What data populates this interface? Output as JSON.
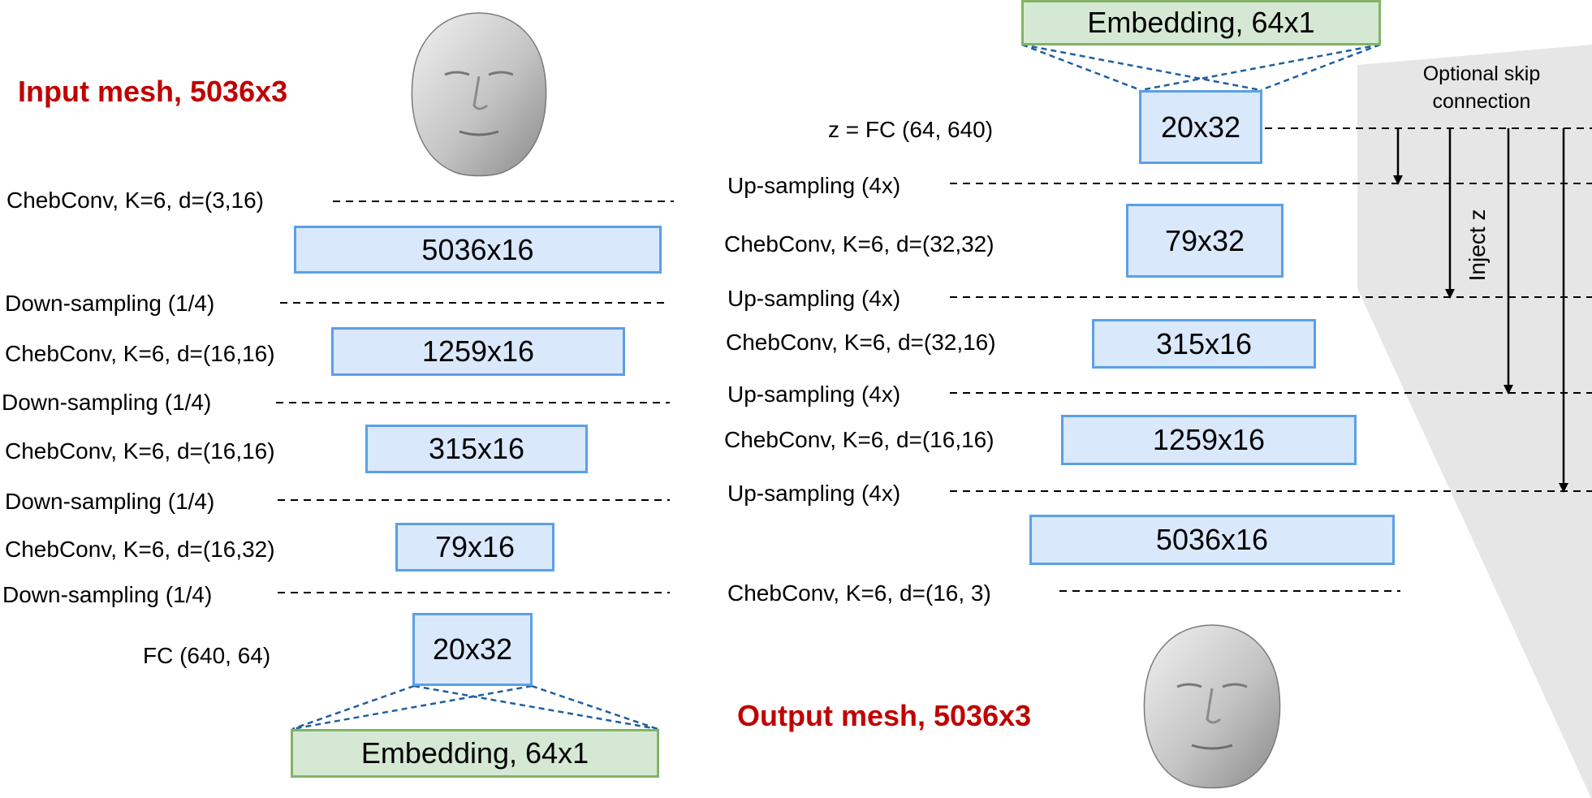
{
  "encoder": {
    "title": "Input mesh, 5036x3",
    "conv1": "ChebConv, K=6, d=(3,16)",
    "box1": "5036x16",
    "down1": "Down-sampling (1/4)",
    "conv2": "ChebConv, K=6, d=(16,16)",
    "box2": "1259x16",
    "down2": "Down-sampling (1/4)",
    "conv3": "ChebConv, K=6, d=(16,16)",
    "box3": "315x16",
    "down3": "Down-sampling (1/4)",
    "conv4": "ChebConv, K=6, d=(16,32)",
    "box4": "79x16",
    "down4": "Down-sampling (1/4)",
    "fc": "FC (640, 64)",
    "box5": "20x32",
    "embedding": "Embedding, 64x1"
  },
  "decoder": {
    "embedding": "Embedding, 64x1",
    "fc": "z = FC (64, 640)",
    "box1": "20x32",
    "up1": "Up-sampling (4x)",
    "conv1": "ChebConv, K=6, d=(32,32)",
    "box2": "79x32",
    "up2": "Up-sampling (4x)",
    "conv2": "ChebConv, K=6, d=(32,16)",
    "box3": "315x16",
    "up3": "Up-sampling (4x)",
    "conv3": "ChebConv, K=6, d=(16,16)",
    "box4": "1259x16",
    "up4": "Up-sampling (4x)",
    "box5": "5036x16",
    "conv4": "ChebConv, K=6, d=(16, 3)",
    "title": "Output mesh, 5036x3",
    "skip_label_line1": "Optional skip",
    "skip_label_line2": "connection",
    "inject_label": "Inject z"
  },
  "colors": {
    "title_red": "#c00000",
    "box_fill": "#dae8fc",
    "box_border": "#5ba0e6",
    "embedding_fill": "#d5e8d4",
    "embedding_border": "#82b366",
    "projection_lines": "#1f5fa0",
    "skip_region": "#e6e6e6"
  }
}
